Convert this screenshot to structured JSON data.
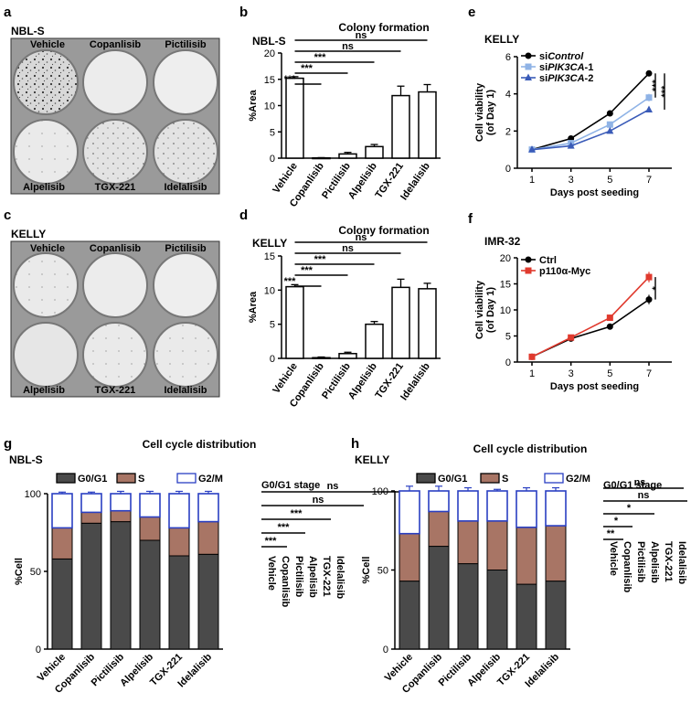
{
  "panel_labels": [
    "a",
    "b",
    "c",
    "d",
    "e",
    "f",
    "g",
    "h"
  ],
  "photos": [
    {
      "cell_line": "NBL-S",
      "wells_top": [
        "Vehicle",
        "Copanlisib",
        "Pictilisib"
      ],
      "wells_bottom": [
        "Alpelisib",
        "TGX-221",
        "Idelalisib"
      ]
    },
    {
      "cell_line": "KELLY",
      "wells_top": [
        "Vehicle",
        "Copanlisib",
        "Pictilisib"
      ],
      "wells_bottom": [
        "Alpelisib",
        "TGX-221",
        "Idelalisib"
      ]
    }
  ],
  "chart_data": [
    {
      "panel": "b",
      "type": "bar",
      "title": "Colony formation",
      "cell_line": "NBL-S",
      "ylabel": "%Area",
      "ylim": [
        0,
        20
      ],
      "yticks": [
        0,
        5,
        10,
        15,
        20
      ],
      "categories": [
        "Vehicle",
        "Copanlisib",
        "Pictilisib",
        "Alpelisib",
        "TGX-221",
        "Idelalisib"
      ],
      "values": [
        15.2,
        0.05,
        0.8,
        2.2,
        11.9,
        12.6
      ],
      "errors": [
        0.3,
        0.05,
        0.3,
        0.4,
        1.8,
        1.4
      ],
      "significance": [
        "***",
        "***",
        "***",
        "ns",
        "ns"
      ]
    },
    {
      "panel": "d",
      "type": "bar",
      "title": "Colony formation",
      "cell_line": "KELLY",
      "ylabel": "%Area",
      "ylim": [
        0,
        15
      ],
      "yticks": [
        0,
        5,
        10,
        15
      ],
      "categories": [
        "Vehicle",
        "Copanlisib",
        "Pictilisib",
        "Alpelisib",
        "TGX-221",
        "Idelalisib"
      ],
      "values": [
        10.5,
        0.1,
        0.7,
        5.0,
        10.4,
        10.2
      ],
      "errors": [
        0.3,
        0.1,
        0.2,
        0.4,
        1.2,
        0.8
      ],
      "significance": [
        "***",
        "***",
        "***",
        "ns",
        "ns"
      ]
    },
    {
      "panel": "e",
      "type": "line",
      "cell_line": "KELLY",
      "ylabel": "Cell viability",
      "ylabel2": "(of Day 1)",
      "xlabel": "Days post seeding",
      "x": [
        1,
        3,
        5,
        7
      ],
      "ylim": [
        0,
        6
      ],
      "yticks": [
        0,
        2,
        4,
        6
      ],
      "series": [
        {
          "name_prefix": "si",
          "name_italic": "Control",
          "name_suffix": "",
          "color": "#000000",
          "marker": "circle",
          "values": [
            1.0,
            1.6,
            2.95,
            5.1
          ],
          "errors": [
            0.05,
            0.08,
            0.08,
            0.15
          ]
        },
        {
          "name_prefix": "si",
          "name_italic": "PIK3CA",
          "name_suffix": "-1",
          "color": "#8fb3e6",
          "marker": "square",
          "values": [
            1.0,
            1.35,
            2.35,
            3.8
          ],
          "errors": [
            0.05,
            0.08,
            0.1,
            0.2
          ]
        },
        {
          "name_prefix": "si",
          "name_italic": "PIK3CA",
          "name_suffix": "-2",
          "color": "#3a5bb8",
          "marker": "triangle",
          "values": [
            1.0,
            1.2,
            2.0,
            3.15
          ],
          "errors": [
            0.05,
            0.06,
            0.08,
            0.15
          ]
        }
      ],
      "significance": [
        "***",
        "***"
      ]
    },
    {
      "panel": "f",
      "type": "line",
      "cell_line": "IMR-32",
      "ylabel": "Cell viability",
      "ylabel2": "(of Day 1)",
      "xlabel": "Days post seeding",
      "x": [
        1,
        3,
        5,
        7
      ],
      "ylim": [
        0,
        20
      ],
      "yticks": [
        0,
        5,
        10,
        15,
        20
      ],
      "series": [
        {
          "name": "Ctrl",
          "color": "#000000",
          "marker": "circle",
          "values": [
            1.0,
            4.5,
            6.8,
            12.0
          ],
          "errors": [
            0.1,
            0.3,
            0.3,
            0.9
          ]
        },
        {
          "name": "p110α-Myc",
          "color": "#e03a2e",
          "marker": "square",
          "values": [
            1.0,
            4.7,
            8.5,
            16.3
          ],
          "errors": [
            0.1,
            0.3,
            0.3,
            1.0
          ]
        }
      ],
      "significance": [
        "*"
      ]
    },
    {
      "panel": "g",
      "type": "bar",
      "stacked": true,
      "title": "Cell cycle distribution",
      "cell_line": "NBL-S",
      "ylabel": "%Cell",
      "ylim": [
        0,
        100
      ],
      "yticks": [
        0,
        50,
        100
      ],
      "categories": [
        "Vehicle",
        "Copanlisib",
        "Pictilisib",
        "Alpelisib",
        "TGX-221",
        "Idelalisib"
      ],
      "series": [
        {
          "name": "G0/G1",
          "values": [
            58,
            81,
            82,
            70,
            60,
            61
          ],
          "errors": [
            1.5,
            1,
            1,
            1.5,
            1.5,
            1.5
          ]
        },
        {
          "name": "S",
          "values": [
            20,
            7,
            7,
            15,
            18,
            21
          ],
          "errors": [
            1.5,
            1,
            1.5,
            1.5,
            3,
            2
          ]
        },
        {
          "name": "G2/M",
          "values": [
            22,
            12,
            11,
            15,
            22,
            18
          ],
          "errors": [
            1,
            1,
            1.5,
            1.5,
            1.5,
            1.5
          ]
        }
      ],
      "legend_title": "G0/G1 stage",
      "sig_labels": [
        "Vehicle",
        "Copanlisib",
        "Pictilisib",
        "Alpelisib",
        "TGX-221",
        "Idelalisib"
      ],
      "significance": [
        "***",
        "***",
        "***",
        "ns",
        "ns"
      ]
    },
    {
      "panel": "h",
      "type": "bar",
      "stacked": true,
      "title": "Cell cycle distribution",
      "cell_line": "KELLY",
      "ylabel": "%Cell",
      "ylim": [
        0,
        100
      ],
      "yticks": [
        0,
        50,
        100
      ],
      "categories": [
        "Vehicle",
        "Copanlisib",
        "Pictilisib",
        "Alpelisib",
        "TGX-221",
        "Idelalisib"
      ],
      "series": [
        {
          "name": "G0/G1",
          "values": [
            43,
            65,
            54,
            50,
            41,
            43
          ],
          "errors": [
            1.5,
            4,
            2,
            3,
            1,
            2.5
          ]
        },
        {
          "name": "S",
          "values": [
            30,
            22,
            27,
            31,
            36,
            35
          ],
          "errors": [
            3,
            4,
            3,
            3,
            2,
            4
          ]
        },
        {
          "name": "G2/M",
          "values": [
            27,
            13,
            19,
            19,
            23,
            22
          ],
          "errors": [
            3,
            3,
            2,
            1,
            2,
            2
          ]
        }
      ],
      "legend_title": "G0/G1 stage",
      "sig_labels": [
        "Vehicle",
        "Copanlisib",
        "Pictilisib",
        "Alpelisib",
        "TGX-221",
        "Idelalisib"
      ],
      "significance": [
        "**",
        "*",
        "*",
        "ns",
        "ns"
      ]
    }
  ],
  "colors": {
    "g0g1": "#4a4a4a",
    "s": "#a87565",
    "g2m": "#2a3fc2"
  }
}
